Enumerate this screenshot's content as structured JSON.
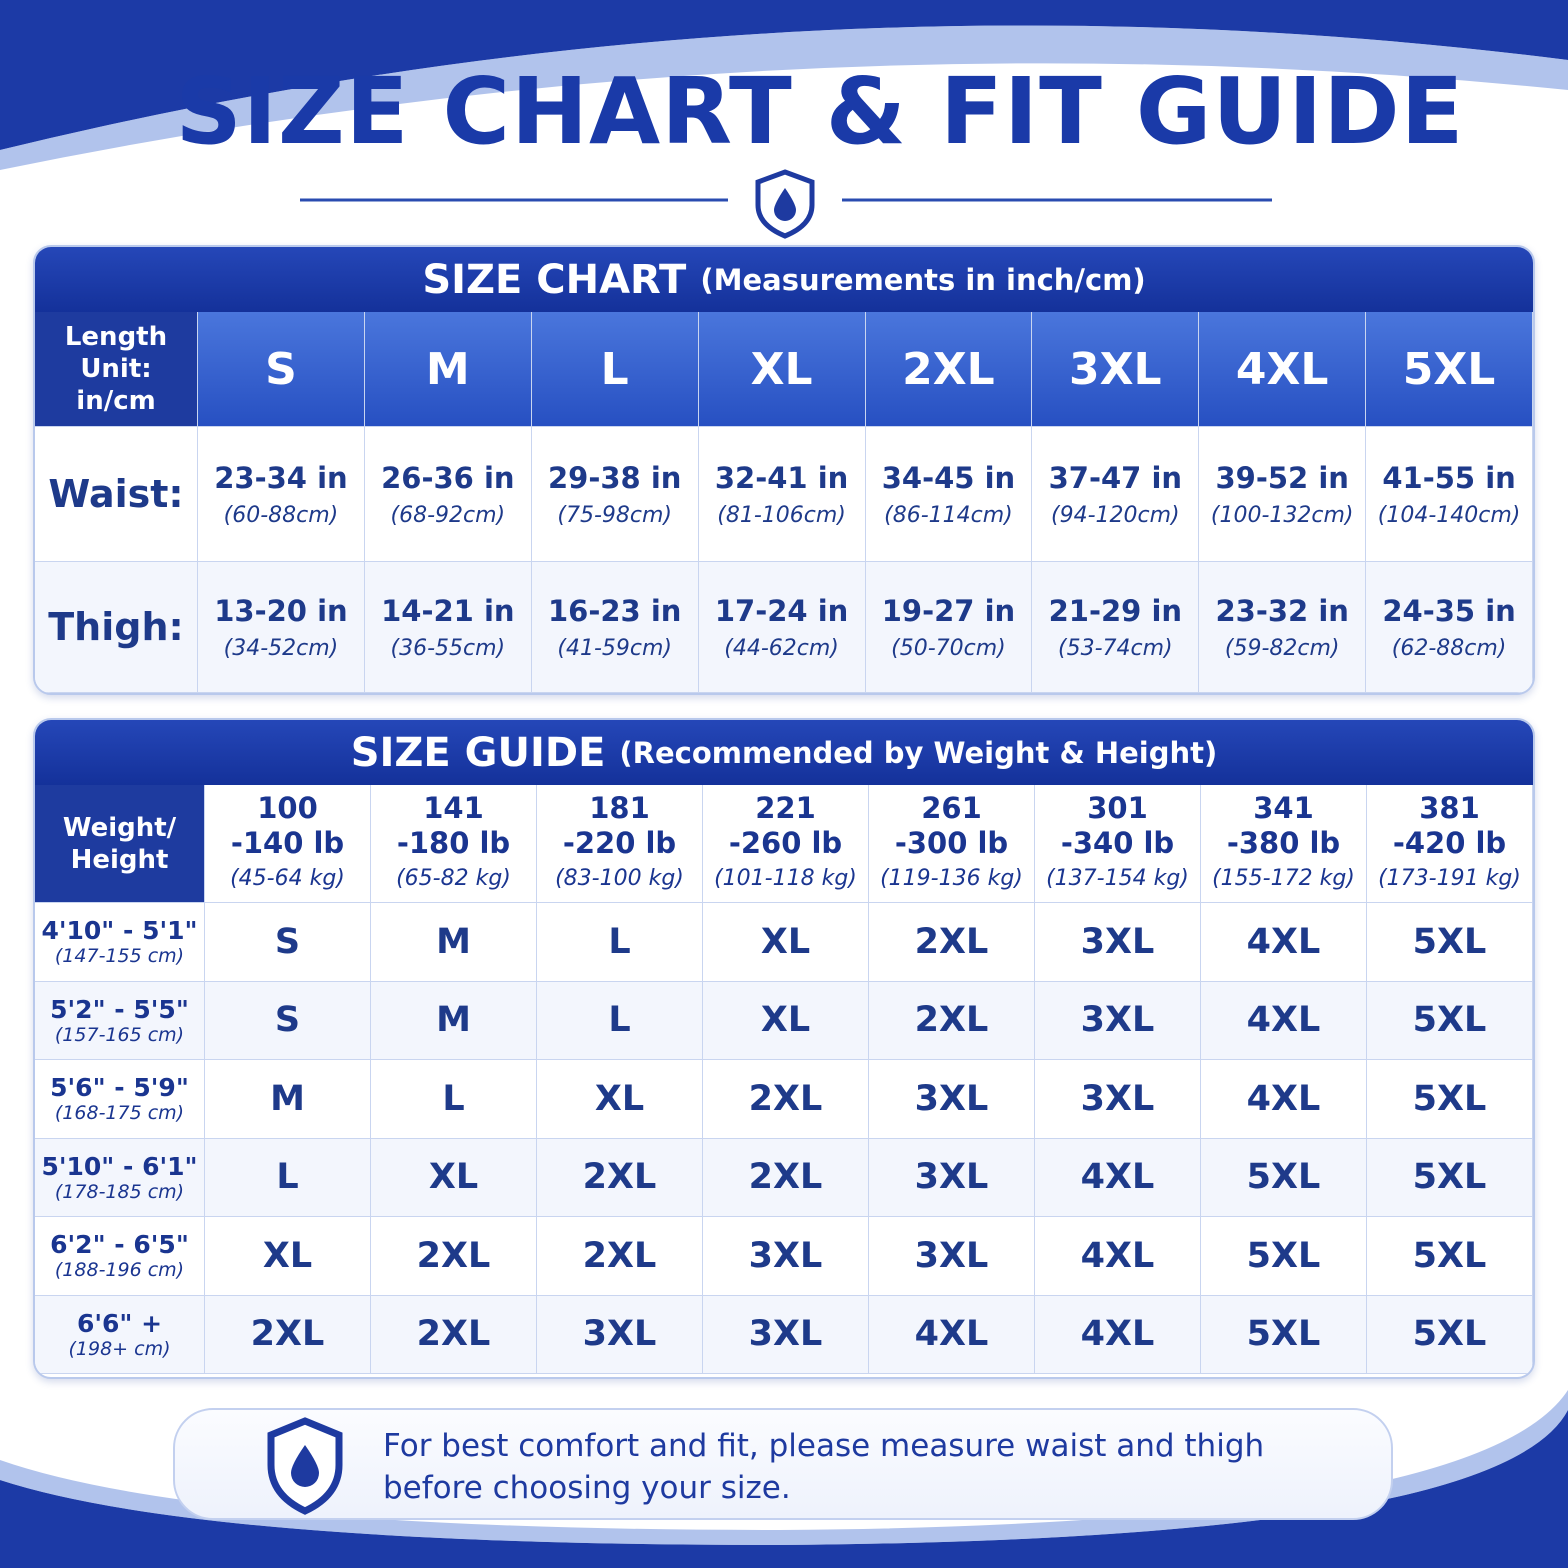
{
  "header": {
    "title": "SIZE CHART & FIT GUIDE"
  },
  "size_chart": {
    "title": "SIZE CHART",
    "subtitle": "(Measurements in inch/cm)",
    "corner": [
      "Length",
      "Unit:",
      "in/cm"
    ],
    "columns": [
      "S",
      "M",
      "L",
      "XL",
      "2XL",
      "3XL",
      "4XL",
      "5XL"
    ],
    "rows": [
      {
        "label": "Waist:",
        "cells": [
          [
            "23-34 in",
            "(60-88cm)"
          ],
          [
            "26-36 in",
            "(68-92cm)"
          ],
          [
            "29-38 in",
            "(75-98cm)"
          ],
          [
            "32-41 in",
            "(81-106cm)"
          ],
          [
            "34-45 in",
            "(86-114cm)"
          ],
          [
            "37-47 in",
            "(94-120cm)"
          ],
          [
            "39-52 in",
            "(100-132cm)"
          ],
          [
            "41-55 in",
            "(104-140cm)"
          ]
        ]
      },
      {
        "label": "Thigh:",
        "cells": [
          [
            "13-20 in",
            "(34-52cm)"
          ],
          [
            "14-21 in",
            "(36-55cm)"
          ],
          [
            "16-23 in",
            "(41-59cm)"
          ],
          [
            "17-24 in",
            "(44-62cm)"
          ],
          [
            "19-27 in",
            "(50-70cm)"
          ],
          [
            "21-29 in",
            "(53-74cm)"
          ],
          [
            "23-32 in",
            "(59-82cm)"
          ],
          [
            "24-35 in",
            "(62-88cm)"
          ]
        ]
      }
    ]
  },
  "size_guide": {
    "title": "SIZE GUIDE",
    "subtitle": "(Recommended by Weight & Height)",
    "corner": [
      "Weight/",
      "Height"
    ],
    "columns": [
      [
        "100",
        "-140 lb",
        "(45-64 kg)"
      ],
      [
        "141",
        "-180 lb",
        "(65-82 kg)"
      ],
      [
        "181",
        "-220 lb",
        "(83-100 kg)"
      ],
      [
        "221",
        "-260 lb",
        "(101-118 kg)"
      ],
      [
        "261",
        "-300 lb",
        "(119-136 kg)"
      ],
      [
        "301",
        "-340 lb",
        "(137-154 kg)"
      ],
      [
        "341",
        "-380 lb",
        "(155-172 kg)"
      ],
      [
        "381",
        "-420 lb",
        "(173-191 kg)"
      ]
    ],
    "rows": [
      {
        "height": "4'10\" - 5'1\"",
        "cm": "(147-155 cm)",
        "cells": [
          "S",
          "M",
          "L",
          "XL",
          "2XL",
          "3XL",
          "4XL",
          "5XL"
        ]
      },
      {
        "height": "5'2\" - 5'5\"",
        "cm": "(157-165 cm)",
        "cells": [
          "S",
          "M",
          "L",
          "XL",
          "2XL",
          "3XL",
          "4XL",
          "5XL"
        ]
      },
      {
        "height": "5'6\" - 5'9\"",
        "cm": "(168-175 cm)",
        "cells": [
          "M",
          "L",
          "XL",
          "2XL",
          "3XL",
          "3XL",
          "4XL",
          "5XL"
        ]
      },
      {
        "height": "5'10\" - 6'1\"",
        "cm": "(178-185 cm)",
        "cells": [
          "L",
          "XL",
          "2XL",
          "2XL",
          "3XL",
          "4XL",
          "5XL",
          "5XL"
        ]
      },
      {
        "height": "6'2\" - 6'5\"",
        "cm": "(188-196 cm)",
        "cells": [
          "XL",
          "2XL",
          "2XL",
          "3XL",
          "3XL",
          "4XL",
          "5XL",
          "5XL"
        ]
      },
      {
        "height": "6'6\" +",
        "cm": "(198+ cm)",
        "cells": [
          "2XL",
          "2XL",
          "3XL",
          "3XL",
          "4XL",
          "4XL",
          "5XL",
          "5XL"
        ]
      }
    ]
  },
  "note": [
    "For best comfort and fit, please measure waist and thigh",
    "before choosing your size."
  ]
}
